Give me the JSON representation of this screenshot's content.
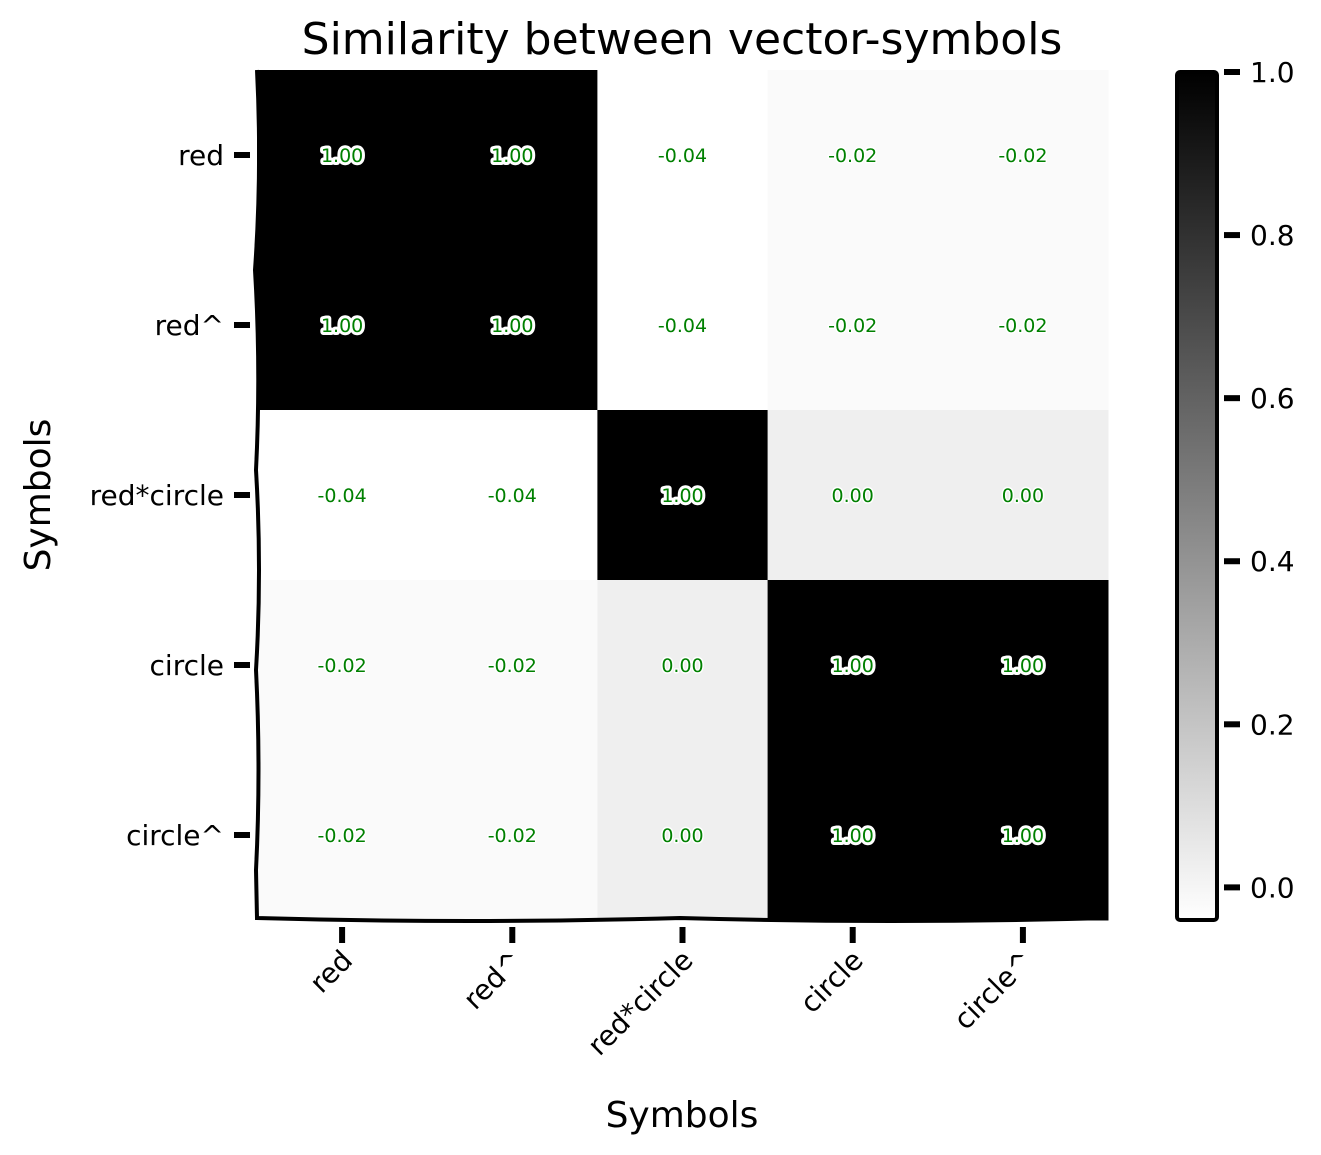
{
  "chart_data": {
    "type": "heatmap",
    "title": "Similarity between vector-symbols",
    "xlabel": "Symbols",
    "ylabel": "Symbols",
    "x_categories": [
      "red",
      "red^",
      "red*circle",
      "circle",
      "circle^"
    ],
    "y_categories": [
      "red",
      "red^",
      "red*circle",
      "circle",
      "circle^"
    ],
    "values": [
      [
        1.0,
        1.0,
        -0.04,
        -0.02,
        -0.02
      ],
      [
        1.0,
        1.0,
        -0.04,
        -0.02,
        -0.02
      ],
      [
        -0.04,
        -0.04,
        1.0,
        0.0,
        0.0
      ],
      [
        -0.02,
        -0.02,
        0.0,
        1.0,
        1.0
      ],
      [
        -0.02,
        -0.02,
        0.0,
        1.0,
        1.0
      ]
    ],
    "cell_labels": [
      [
        "1.00",
        "1.00",
        "-0.04",
        "-0.02",
        "-0.02"
      ],
      [
        "1.00",
        "1.00",
        "-0.04",
        "-0.02",
        "-0.02"
      ],
      [
        "-0.04",
        "-0.04",
        "1.00",
        "0.00",
        "0.00"
      ],
      [
        "-0.02",
        "-0.02",
        "0.00",
        "1.00",
        "1.00"
      ],
      [
        "-0.02",
        "-0.02",
        "0.00",
        "1.00",
        "1.00"
      ]
    ],
    "colormap": "grayscale (white = low, black = high)",
    "color_range": [
      -0.04,
      1.0
    ],
    "colorbar": {
      "position": "right",
      "ticks": [
        0.0,
        0.2,
        0.4,
        0.6,
        0.8,
        1.0
      ],
      "tick_labels": [
        "0.0",
        "0.2",
        "0.4",
        "0.6",
        "0.8",
        "1.0"
      ]
    },
    "annotation_color": "#008000",
    "grid": false
  }
}
